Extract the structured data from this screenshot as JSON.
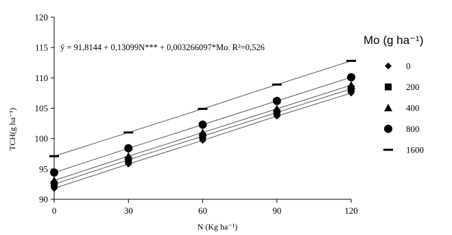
{
  "chart_data": {
    "type": "scatter",
    "title": "",
    "equation_text": "ŷ = 91,8144 + 0,13099N*** + 0,003266097*Mo.  R²=0,526",
    "xlabel": "N (Kg ha⁻¹)",
    "ylabel": "TCH(g ha⁻¹)",
    "legend_title": "Mo (g ha⁻¹)",
    "legend_position": "right",
    "xlim": [
      0,
      120
    ],
    "ylim": [
      90,
      120
    ],
    "x_ticks": [
      0,
      30,
      60,
      90,
      120
    ],
    "y_ticks": [
      90,
      95,
      100,
      105,
      110,
      115,
      120
    ],
    "x_tick_labels": [
      "0",
      "30",
      "60",
      "90",
      "120"
    ],
    "y_tick_labels": [
      "90",
      "95",
      "100",
      "105",
      "110",
      "115",
      "120"
    ],
    "grid": false,
    "x": [
      0,
      30,
      60,
      90,
      120
    ],
    "series": [
      {
        "name": "0",
        "marker": "diamond",
        "values": [
          91.8,
          95.8,
          99.7,
          103.7,
          107.5
        ]
      },
      {
        "name": "200",
        "marker": "square",
        "values": [
          92.5,
          96.5,
          100.4,
          104.3,
          108.2
        ]
      },
      {
        "name": "400",
        "marker": "triangle",
        "values": [
          93.1,
          97.1,
          101.0,
          104.9,
          108.8
        ]
      },
      {
        "name": "800",
        "marker": "circle",
        "values": [
          94.4,
          98.4,
          102.3,
          106.2,
          110.1
        ]
      },
      {
        "name": "1600",
        "marker": "dash",
        "values": [
          97.1,
          101.0,
          104.9,
          108.9,
          112.8
        ]
      }
    ],
    "colors": {
      "series": "#000000",
      "axis": "#000000",
      "line": "#555555"
    }
  }
}
